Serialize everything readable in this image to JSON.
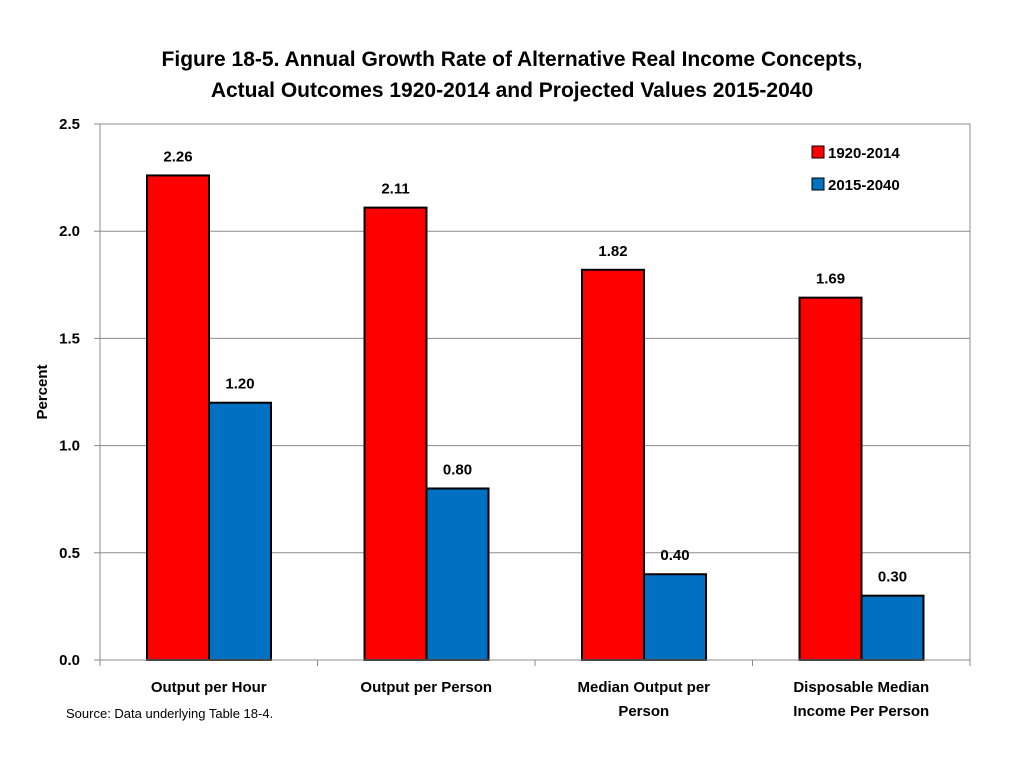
{
  "chart_data": {
    "type": "bar",
    "title_lines": [
      "Figure 18-5.  Annual Growth Rate of Alternative Real Income Concepts,",
      "Actual Outcomes 1920-2014 and Projected Values 2015-2040"
    ],
    "categories": [
      [
        "Output per Hour"
      ],
      [
        "Output per Person"
      ],
      [
        "Median Output per",
        "Person"
      ],
      [
        "Disposable Median",
        "Income Per Person"
      ]
    ],
    "series": [
      {
        "name": "1920-2014",
        "color": "#ff0000",
        "values": [
          2.26,
          2.11,
          1.82,
          1.69
        ],
        "labels": [
          "2.26",
          "2.11",
          "1.82",
          "1.69"
        ]
      },
      {
        "name": "2015-2040",
        "color": "#0070c0",
        "values": [
          1.2,
          0.8,
          0.4,
          0.3
        ],
        "labels": [
          "1.20",
          "0.80",
          "0.40",
          "0.30"
        ]
      }
    ],
    "ylabel": "Percent",
    "xlabel": "",
    "ylim": [
      0,
      2.5
    ],
    "yticks": [
      "0.0",
      "0.5",
      "1.0",
      "1.5",
      "2.0",
      "2.5"
    ],
    "grid": true,
    "legend_position": "top-right",
    "source": "Source: Data underlying Table 18-4."
  }
}
